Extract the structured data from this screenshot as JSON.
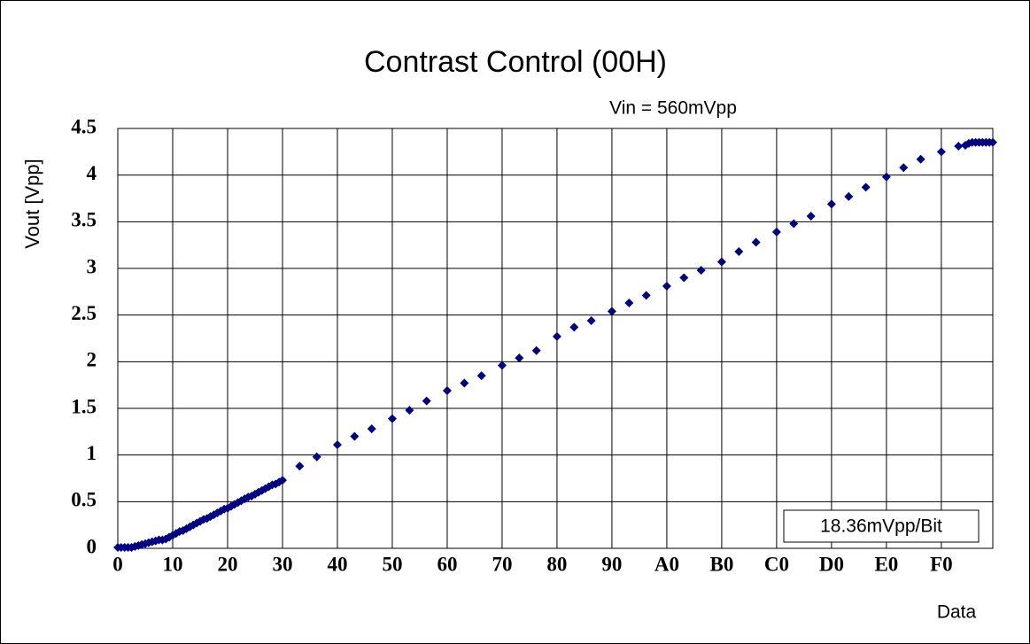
{
  "chart_data": {
    "type": "scatter",
    "title": "Contrast Control (00H)",
    "annotation": "Vin = 560mVpp",
    "note": "18.36mVpp/Bit",
    "ylabel": "Vout [Vpp]",
    "xlabel": "Data",
    "color": "#000080",
    "grid": true,
    "xlim": [
      0,
      255
    ],
    "ylim": [
      0,
      4.5
    ],
    "yticks": [
      0,
      0.5,
      1,
      1.5,
      2,
      2.5,
      3,
      3.5,
      4,
      4.5
    ],
    "xticks": [
      0,
      {
        "value": 16,
        "label": "10"
      },
      {
        "value": 32,
        "label": "20"
      },
      {
        "value": 48,
        "label": "30"
      },
      {
        "value": 64,
        "label": "40"
      },
      {
        "value": 80,
        "label": "50"
      },
      {
        "value": 96,
        "label": "60"
      },
      {
        "value": 112,
        "label": "70"
      },
      {
        "value": 128,
        "label": "80"
      },
      {
        "value": 144,
        "label": "90"
      },
      {
        "value": 160,
        "label": "A0"
      },
      {
        "value": 176,
        "label": "B0"
      },
      {
        "value": 192,
        "label": "C0"
      },
      {
        "value": 208,
        "label": "D0"
      },
      {
        "value": 224,
        "label": "E0"
      },
      {
        "value": 240,
        "label": "F0"
      }
    ],
    "x": [
      0,
      1,
      2,
      3,
      4,
      5,
      6,
      7,
      8,
      9,
      10,
      11,
      12,
      13,
      14,
      15,
      16,
      17,
      18,
      19,
      20,
      21,
      22,
      23,
      24,
      25,
      26,
      27,
      28,
      29,
      30,
      31,
      32,
      33,
      34,
      35,
      36,
      37,
      38,
      39,
      40,
      41,
      42,
      43,
      44,
      45,
      46,
      47,
      48,
      53,
      58,
      64,
      69,
      74,
      80,
      85,
      90,
      96,
      101,
      106,
      112,
      117,
      122,
      128,
      133,
      138,
      144,
      149,
      154,
      160,
      165,
      170,
      176,
      181,
      186,
      192,
      197,
      202,
      208,
      213,
      218,
      224,
      229,
      234,
      240,
      245,
      247,
      248,
      249,
      250,
      251,
      252,
      253,
      254,
      255
    ],
    "values": [
      0.01,
      0.01,
      0.01,
      0.01,
      0.01,
      0.02,
      0.03,
      0.04,
      0.05,
      0.06,
      0.07,
      0.08,
      0.09,
      0.09,
      0.1,
      0.12,
      0.14,
      0.16,
      0.18,
      0.19,
      0.21,
      0.23,
      0.25,
      0.27,
      0.29,
      0.31,
      0.32,
      0.34,
      0.36,
      0.38,
      0.4,
      0.42,
      0.43,
      0.45,
      0.47,
      0.49,
      0.51,
      0.53,
      0.55,
      0.56,
      0.58,
      0.6,
      0.62,
      0.64,
      0.66,
      0.68,
      0.69,
      0.71,
      0.73,
      0.88,
      0.98,
      1.11,
      1.2,
      1.28,
      1.39,
      1.48,
      1.58,
      1.69,
      1.77,
      1.85,
      1.96,
      2.04,
      2.12,
      2.27,
      2.37,
      2.44,
      2.54,
      2.63,
      2.71,
      2.81,
      2.9,
      2.98,
      3.07,
      3.18,
      3.28,
      3.39,
      3.48,
      3.56,
      3.69,
      3.77,
      3.87,
      3.98,
      4.08,
      4.17,
      4.25,
      4.31,
      4.32,
      4.34,
      4.35,
      4.35,
      4.35,
      4.35,
      4.35,
      4.35,
      4.35
    ]
  }
}
